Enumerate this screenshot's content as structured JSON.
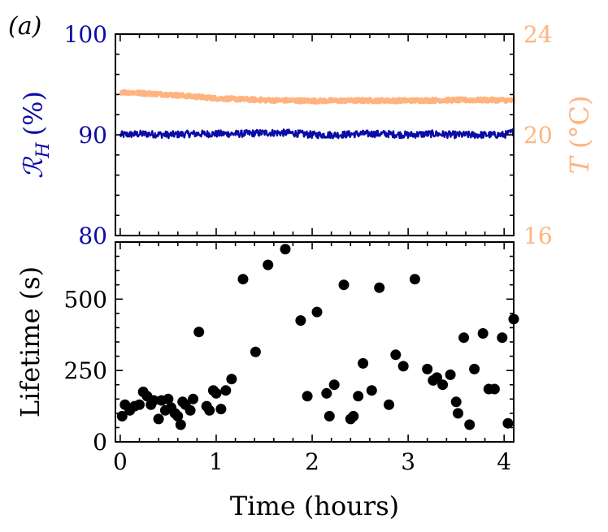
{
  "figure": {
    "panel_label": "(a)"
  },
  "colors": {
    "humidity": "#0b0ba6",
    "temperature": "#ffb380",
    "points": "#000000",
    "axis": "#000000"
  },
  "chart_data": [
    {
      "type": "line",
      "panel": "top",
      "xlim": [
        -0.05,
        4.1
      ],
      "series": [
        {
          "name": "R_H",
          "axis": "left",
          "ylabel": "ℛH (%)",
          "ylabel_main": "ℛ",
          "ylabel_sub": "H",
          "ylabel_unit": "(%)",
          "ylim": [
            80,
            100
          ],
          "yticks": [
            "80",
            "90",
            "100"
          ],
          "x": [
            0.0,
            0.25,
            0.5,
            0.75,
            1.0,
            1.25,
            1.5,
            1.75,
            2.0,
            2.25,
            2.5,
            2.75,
            3.0,
            3.25,
            3.5,
            3.75,
            4.0,
            4.1
          ],
          "values": [
            90.0,
            90.1,
            90.0,
            90.1,
            90.1,
            90.1,
            90.2,
            90.2,
            90.0,
            90.0,
            90.1,
            90.1,
            90.0,
            90.1,
            90.0,
            90.0,
            90.0,
            90.3
          ],
          "noise": 0.35
        },
        {
          "name": "T",
          "axis": "right",
          "ylabel": "T (°C)",
          "ylabel_main": "T",
          "ylabel_unit": " (°C)",
          "ylim": [
            16,
            24
          ],
          "yticks": [
            "16",
            "20",
            "24"
          ],
          "x": [
            0.0,
            0.5,
            1.0,
            1.5,
            2.0,
            2.5,
            3.0,
            3.5,
            4.0,
            4.1
          ],
          "values": [
            21.7,
            21.6,
            21.45,
            21.38,
            21.35,
            21.36,
            21.36,
            21.38,
            21.38,
            21.35
          ],
          "noise": 0.07
        }
      ]
    },
    {
      "type": "scatter",
      "panel": "bottom",
      "xlabel": "Time (hours)",
      "ylabel": "Lifetime (s)",
      "xlim": [
        -0.05,
        4.1
      ],
      "ylim": [
        0,
        700
      ],
      "xticks": [
        "0",
        "1",
        "2",
        "3",
        "4"
      ],
      "yticks": [
        "0",
        "250",
        "500"
      ],
      "x": [
        0.02,
        0.05,
        0.1,
        0.15,
        0.2,
        0.24,
        0.28,
        0.32,
        0.35,
        0.4,
        0.43,
        0.47,
        0.5,
        0.53,
        0.57,
        0.6,
        0.63,
        0.65,
        0.68,
        0.73,
        0.76,
        0.82,
        0.9,
        0.93,
        0.97,
        1.0,
        1.05,
        1.1,
        1.16,
        1.28,
        1.41,
        1.54,
        1.72,
        1.88,
        1.95,
        2.05,
        2.15,
        2.18,
        2.23,
        2.33,
        2.4,
        2.43,
        2.48,
        2.53,
        2.62,
        2.7,
        2.8,
        2.87,
        2.95,
        3.07,
        3.2,
        3.26,
        3.3,
        3.36,
        3.44,
        3.5,
        3.52,
        3.58,
        3.64,
        3.69,
        3.78,
        3.84,
        3.9,
        3.98,
        4.04,
        4.1
      ],
      "values": [
        90,
        130,
        110,
        125,
        130,
        175,
        160,
        130,
        145,
        80,
        145,
        110,
        150,
        120,
        100,
        90,
        60,
        140,
        130,
        110,
        150,
        385,
        125,
        110,
        180,
        170,
        115,
        180,
        220,
        570,
        315,
        620,
        675,
        425,
        160,
        455,
        170,
        90,
        200,
        550,
        80,
        90,
        160,
        275,
        180,
        540,
        130,
        305,
        265,
        570,
        255,
        215,
        225,
        200,
        235,
        140,
        100,
        365,
        60,
        255,
        380,
        185,
        185,
        365,
        65,
        430
      ]
    }
  ]
}
